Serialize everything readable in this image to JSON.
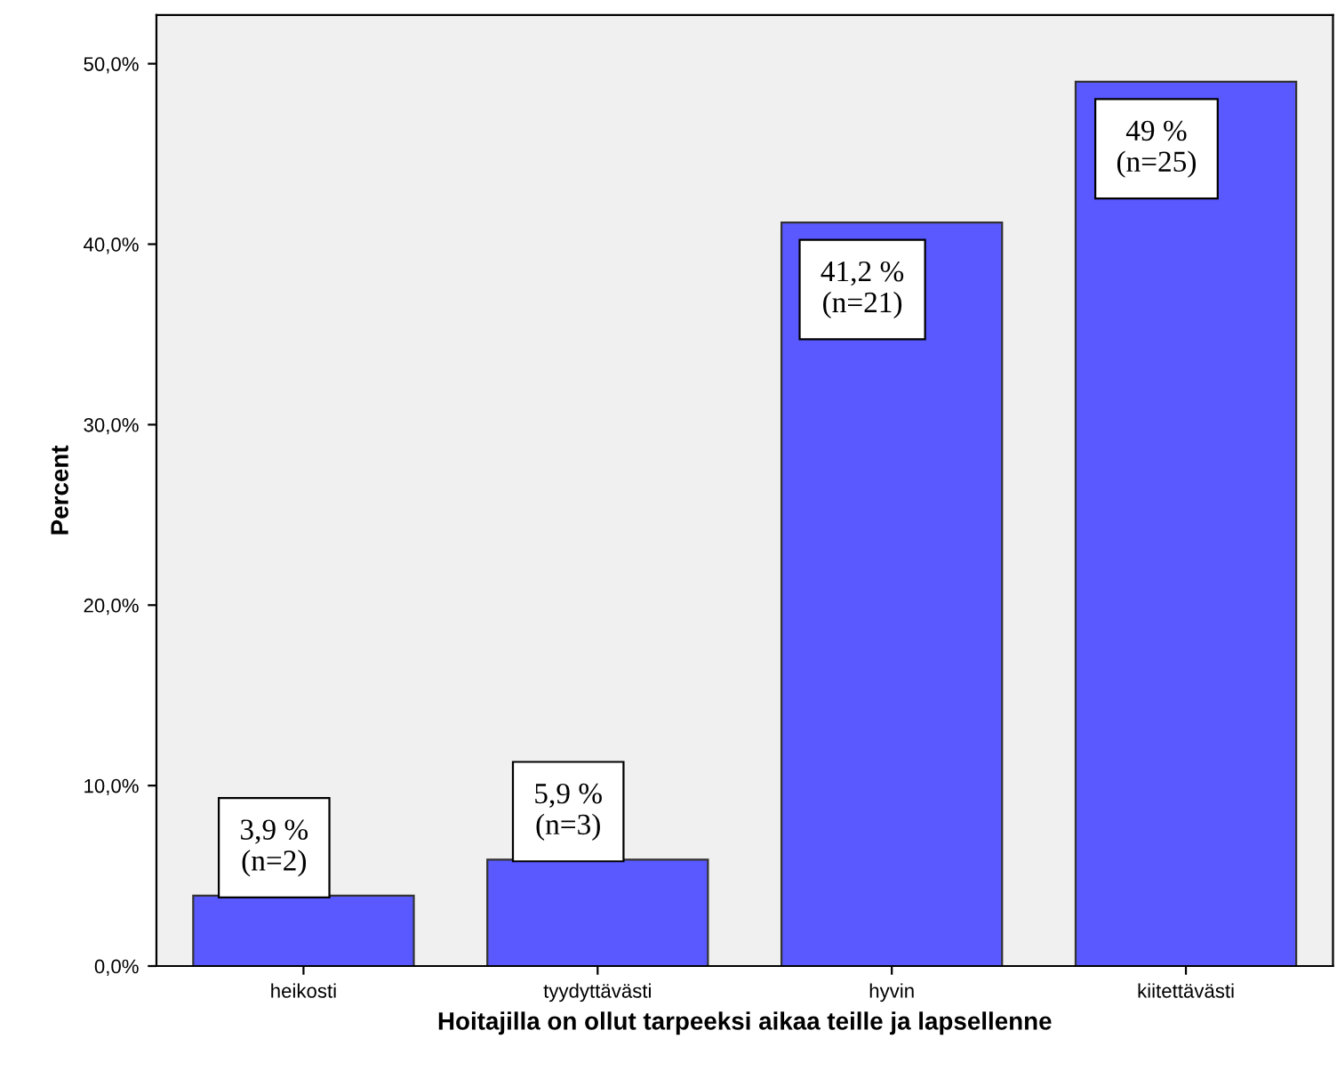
{
  "chart_data": {
    "type": "bar",
    "xlabel": "Hoitajilla on ollut tarpeeksi aikaa teille ja lapsellenne",
    "ylabel": "Percent",
    "categories": [
      "heikosti",
      "tyydyttävästi",
      "hyvin",
      "kiitettävästi"
    ],
    "values": [
      3.9,
      5.9,
      41.2,
      49
    ],
    "value_labels": [
      "3,9 %\n(n=2)",
      "5,9 %\n(n=3)",
      "41,2 %\n(n=21)",
      "49 %\n(n=25)"
    ],
    "color": "#5959ff",
    "ylim": [
      0,
      52.7
    ],
    "yticks": [
      {
        "value": 0,
        "label": "0,0%"
      },
      {
        "value": 10,
        "label": "10,0%"
      },
      {
        "value": 20,
        "label": "20,0%"
      },
      {
        "value": 30,
        "label": "30,0%"
      },
      {
        "value": 40,
        "label": "40,0%"
      },
      {
        "value": 50,
        "label": "50,0%"
      }
    ],
    "grid": false,
    "legend": false
  }
}
